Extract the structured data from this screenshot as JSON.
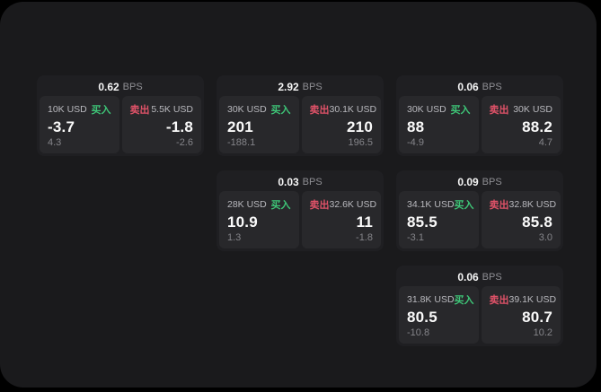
{
  "colors": {
    "page": "#000000",
    "surface": "#1a1a1c",
    "card": "#1f1f22",
    "panel": "#28282b",
    "buy": "#3ec577",
    "sell": "#df5268"
  },
  "labels": {
    "bps_suffix": "BPS",
    "buy": "买入",
    "sell": "卖出"
  },
  "cards": [
    {
      "bps": "0.62",
      "buy": {
        "size": "10K USD",
        "price": "-3.7",
        "delta": "4.3"
      },
      "sell": {
        "size": "5.5K USD",
        "price": "-1.8",
        "delta": "-2.6"
      }
    },
    {
      "bps": "2.92",
      "buy": {
        "size": "30K USD",
        "price": "201",
        "delta": "-188.1"
      },
      "sell": {
        "size": "30.1K USD",
        "price": "210",
        "delta": "196.5"
      }
    },
    {
      "bps": "0.06",
      "buy": {
        "size": "30K USD",
        "price": "88",
        "delta": "-4.9"
      },
      "sell": {
        "size": "30K USD",
        "price": "88.2",
        "delta": "4.7"
      }
    },
    {
      "bps": "0.03",
      "buy": {
        "size": "28K USD",
        "price": "10.9",
        "delta": "1.3"
      },
      "sell": {
        "size": "32.6K USD",
        "price": "11",
        "delta": "-1.8"
      }
    },
    {
      "bps": "0.09",
      "buy": {
        "size": "34.1K USD",
        "price": "85.5",
        "delta": "-3.1"
      },
      "sell": {
        "size": "32.8K USD",
        "price": "85.8",
        "delta": "3.0"
      }
    },
    {
      "bps": "0.06",
      "buy": {
        "size": "31.8K USD",
        "price": "80.5",
        "delta": "-10.8"
      },
      "sell": {
        "size": "39.1K USD",
        "price": "80.7",
        "delta": "10.2"
      }
    }
  ]
}
